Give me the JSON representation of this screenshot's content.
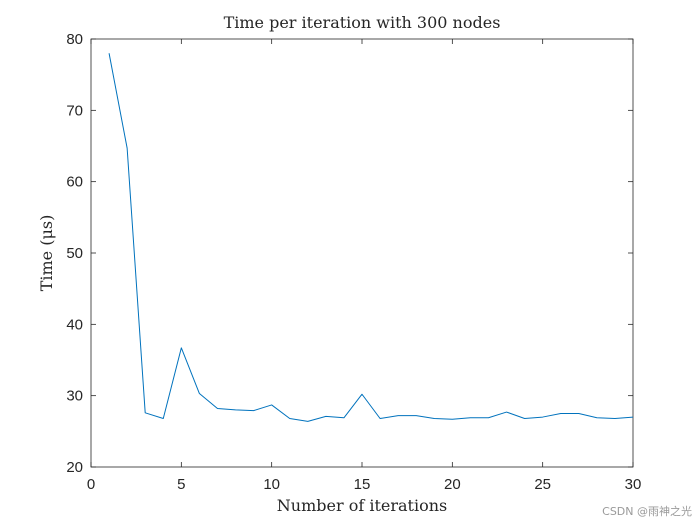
{
  "chart_data": {
    "type": "line",
    "title": "Time per iteration with 300 nodes",
    "xlabel": "Number of iterations",
    "ylabel": "Time (μs)",
    "xlim": [
      0,
      30
    ],
    "ylim": [
      20,
      80
    ],
    "xticks": [
      0,
      5,
      10,
      15,
      20,
      25,
      30
    ],
    "yticks": [
      20,
      30,
      40,
      50,
      60,
      70,
      80
    ],
    "grid": false,
    "series": [
      {
        "color": "#0072bd",
        "x": [
          1,
          2,
          3,
          4,
          5,
          6,
          7,
          8,
          9,
          10,
          11,
          12,
          13,
          14,
          15,
          16,
          17,
          18,
          19,
          20,
          21,
          22,
          23,
          24,
          25,
          26,
          27,
          28,
          29,
          30
        ],
        "y": [
          78,
          64.7,
          27.6,
          26.8,
          36.7,
          30.3,
          28.2,
          28.0,
          27.9,
          28.7,
          26.8,
          26.4,
          27.1,
          26.9,
          30.2,
          26.8,
          27.2,
          27.2,
          26.8,
          26.7,
          26.9,
          26.9,
          27.7,
          26.8,
          27.0,
          27.5,
          27.5,
          26.9,
          26.8,
          27.0
        ]
      }
    ]
  },
  "watermark": "CSDN @雨神之光"
}
